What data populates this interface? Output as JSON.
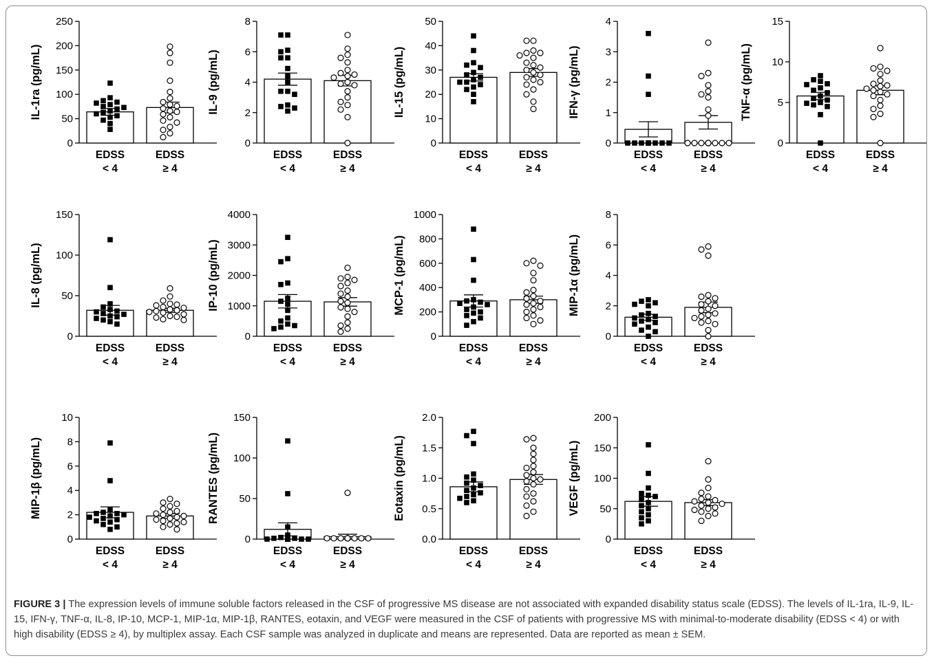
{
  "groups": [
    "EDSS < 4",
    "EDSS ≥ 4"
  ],
  "caption": {
    "label": "FIGURE 3 |",
    "text": " The expression levels of immune soluble factors released in the CSF of progressive MS disease are not associated with expanded disability status scale (EDSS). The levels of IL-1ra, IL-9, IL-15, IFN-γ, TNF-α, IL-8, IP-10, MCP-1, MIP-1α, MIP-1β, RANTES, eotaxin, and VEGF were measured in the CSF of patients with progressive MS with minimal-to-moderate disability (EDSS < 4) or with high disability (EDSS ≥ 4), by multiplex assay. Each CSF sample was analyzed in duplicate and means are represented. Data are reported as mean ± SEM."
  },
  "chart_data": [
    {
      "type": "scatter",
      "ylabel": "IL-1ra (pg/mL)",
      "ylim": [
        0,
        250
      ],
      "yticks": [
        0,
        50,
        100,
        150,
        200,
        250
      ],
      "categories": [
        "EDSS\n< 4",
        "EDSS\n≥ 4"
      ],
      "series": [
        {
          "name": "EDSS < 4",
          "marker": "square",
          "mean": 64,
          "sem": 7,
          "values": [
            123,
            93,
            87,
            84,
            82,
            79,
            75,
            73,
            70,
            66,
            63,
            60,
            56,
            53,
            47,
            40,
            28
          ]
        },
        {
          "name": "EDSS ≥ 4",
          "marker": "circle",
          "mean": 73,
          "sem": 11,
          "values": [
            198,
            185,
            165,
            128,
            105,
            92,
            84,
            79,
            76,
            71,
            66,
            64,
            59,
            53,
            46,
            42,
            33,
            27,
            20,
            12
          ]
        }
      ]
    },
    {
      "type": "scatter",
      "ylabel": "IL-9 (pg/mL)",
      "ylim": [
        0,
        8
      ],
      "yticks": [
        0,
        2,
        4,
        6,
        8
      ],
      "categories": [
        "EDSS\n< 4",
        "EDSS\n≥ 4"
      ],
      "series": [
        {
          "name": "EDSS < 4",
          "marker": "square",
          "mean": 4.2,
          "sem": 0.4,
          "values": [
            7.1,
            7.1,
            6.1,
            6.0,
            5.6,
            5.6,
            4.9,
            4.4,
            4.0,
            3.4,
            3.4,
            3.2,
            2.5,
            2.4,
            2.3,
            2.1
          ]
        },
        {
          "name": "EDSS ≥ 4",
          "marker": "circle",
          "mean": 4.1,
          "sem": 0.35,
          "values": [
            7.1,
            6.2,
            5.8,
            5.6,
            5.3,
            4.8,
            4.6,
            4.5,
            4.4,
            4.3,
            4.0,
            3.9,
            3.8,
            3.4,
            3.0,
            2.7,
            2.5,
            2.2,
            1.7,
            0.0
          ]
        }
      ]
    },
    {
      "type": "scatter",
      "ylabel": "IL-15 (pg/mL)",
      "ylim": [
        0,
        50
      ],
      "yticks": [
        0,
        10,
        20,
        30,
        40,
        50
      ],
      "categories": [
        "EDSS\n< 4",
        "EDSS\n≥ 4"
      ],
      "series": [
        {
          "name": "EDSS < 4",
          "marker": "square",
          "mean": 27,
          "sem": 1.5,
          "values": [
            44,
            38,
            33,
            32,
            31,
            29,
            28,
            27,
            26,
            25,
            25,
            24,
            23,
            22,
            20,
            17
          ]
        },
        {
          "name": "EDSS ≥ 4",
          "marker": "circle",
          "mean": 29,
          "sem": 1.6,
          "values": [
            42,
            42,
            38,
            37,
            37,
            36,
            35,
            33,
            32,
            31,
            30,
            29,
            28,
            27,
            26,
            25,
            24,
            22,
            20,
            17,
            14
          ]
        }
      ]
    },
    {
      "type": "scatter",
      "ylabel": "IFN-γ (pg/mL)",
      "ylim": [
        0,
        4
      ],
      "yticks": [
        0,
        1,
        2,
        3,
        4
      ],
      "categories": [
        "EDSS\n< 4",
        "EDSS\n≥ 4"
      ],
      "series": [
        {
          "name": "EDSS < 4",
          "marker": "square",
          "mean": 0.45,
          "sem": 0.25,
          "values": [
            3.6,
            2.2,
            1.6,
            0,
            0,
            0,
            0,
            0,
            0,
            0,
            0,
            0,
            0,
            0,
            0,
            0,
            0
          ]
        },
        {
          "name": "EDSS ≥ 4",
          "marker": "circle",
          "mean": 0.68,
          "sem": 0.22,
          "values": [
            3.3,
            2.3,
            2.2,
            1.9,
            1.7,
            1.6,
            1.5,
            1.1,
            0.9,
            0,
            0,
            0,
            0,
            0,
            0,
            0,
            0,
            0,
            0,
            0
          ]
        }
      ]
    },
    {
      "type": "scatter",
      "ylabel": "TNF-α (pg/mL)",
      "ylim": [
        0,
        15
      ],
      "yticks": [
        0,
        5,
        10,
        15
      ],
      "categories": [
        "EDSS\n< 4",
        "EDSS\n≥ 4"
      ],
      "series": [
        {
          "name": "EDSS < 4",
          "marker": "square",
          "mean": 5.8,
          "sem": 0.45,
          "values": [
            8.3,
            7.8,
            7.6,
            7.3,
            7.2,
            6.8,
            6.5,
            6.2,
            5.8,
            5.5,
            5.3,
            5.0,
            4.9,
            4.7,
            4.5,
            3.5,
            0
          ]
        },
        {
          "name": "EDSS ≥ 4",
          "marker": "circle",
          "mean": 6.5,
          "sem": 0.55,
          "values": [
            11.7,
            9.4,
            9.2,
            8.9,
            8.5,
            7.7,
            7.3,
            7.1,
            7.0,
            6.7,
            6.5,
            6.3,
            6.0,
            5.8,
            5.3,
            4.6,
            4.2,
            3.6,
            3.2,
            0
          ]
        }
      ]
    },
    {
      "type": "scatter",
      "ylabel": "IL-8 (pg/mL)",
      "ylim": [
        0,
        150
      ],
      "yticks": [
        0,
        50,
        100,
        150
      ],
      "categories": [
        "EDSS\n< 4",
        "EDSS\n≥ 4"
      ],
      "series": [
        {
          "name": "EDSS < 4",
          "marker": "square",
          "mean": 32,
          "sem": 6,
          "values": [
            119,
            60,
            40,
            36,
            33,
            31,
            30,
            28,
            27,
            25,
            24,
            22,
            20,
            18,
            15
          ]
        },
        {
          "name": "EDSS ≥ 4",
          "marker": "circle",
          "mean": 32,
          "sem": 2.5,
          "values": [
            59,
            49,
            44,
            40,
            39,
            38,
            36,
            35,
            33,
            32,
            31,
            30,
            29,
            27,
            25,
            24,
            23,
            21,
            20
          ]
        }
      ]
    },
    {
      "type": "scatter",
      "ylabel": "IP-10 (pg/mL)",
      "ylim": [
        0,
        4000
      ],
      "yticks": [
        0,
        1000,
        2000,
        3000,
        4000
      ],
      "categories": [
        "EDSS\n< 4",
        "EDSS\n≥ 4"
      ],
      "series": [
        {
          "name": "EDSS < 4",
          "marker": "square",
          "mean": 1150,
          "sem": 220,
          "values": [
            3250,
            2550,
            2450,
            1750,
            1700,
            1250,
            1150,
            1050,
            850,
            600,
            500,
            400,
            350,
            300,
            250
          ]
        },
        {
          "name": "EDSS ≥ 4",
          "marker": "circle",
          "mean": 1130,
          "sem": 140,
          "values": [
            2250,
            1950,
            1900,
            1850,
            1750,
            1650,
            1500,
            1400,
            1300,
            1150,
            1100,
            950,
            900,
            800,
            650,
            450,
            350,
            250,
            150
          ]
        }
      ]
    },
    {
      "type": "scatter",
      "ylabel": "MCP-1 (pg/mL)",
      "ylim": [
        0,
        1000
      ],
      "yticks": [
        0,
        200,
        400,
        600,
        800,
        1000
      ],
      "categories": [
        "EDSS\n< 4",
        "EDSS\n≥ 4"
      ],
      "series": [
        {
          "name": "EDSS < 4",
          "marker": "square",
          "mean": 290,
          "sem": 50,
          "values": [
            880,
            630,
            460,
            300,
            290,
            280,
            270,
            260,
            240,
            220,
            200,
            190,
            170,
            150,
            120,
            90
          ]
        },
        {
          "name": "EDSS ≥ 4",
          "marker": "circle",
          "mean": 300,
          "sem": 30,
          "values": [
            620,
            600,
            580,
            520,
            460,
            380,
            360,
            330,
            310,
            290,
            270,
            260,
            240,
            220,
            200,
            170,
            150,
            130,
            100
          ]
        }
      ]
    },
    {
      "type": "scatter",
      "ylabel": "MIP-1α (pg/mL)",
      "ylim": [
        0,
        8
      ],
      "yticks": [
        0,
        2,
        4,
        6,
        8
      ],
      "categories": [
        "EDSS\n< 4",
        "EDSS\n≥ 4"
      ],
      "series": [
        {
          "name": "EDSS < 4",
          "marker": "square",
          "mean": 1.25,
          "sem": 0.2,
          "values": [
            2.4,
            2.3,
            2.2,
            2.1,
            2.0,
            1.5,
            1.4,
            1.3,
            1.2,
            1.1,
            1.0,
            0.9,
            0.8,
            0.6,
            0.4,
            0.3,
            0
          ]
        },
        {
          "name": "EDSS ≥ 4",
          "marker": "circle",
          "mean": 1.9,
          "sem": 0.35,
          "values": [
            5.9,
            5.7,
            5.3,
            2.7,
            2.6,
            2.5,
            2.3,
            2.1,
            2.0,
            1.8,
            1.7,
            1.5,
            1.4,
            1.3,
            1.2,
            1.0,
            0.9,
            0.8,
            0.4,
            0
          ]
        }
      ]
    },
    {
      "type": "scatter",
      "ylabel": "MIP-1β (pg/mL)",
      "ylim": [
        0,
        10
      ],
      "yticks": [
        0,
        2,
        4,
        6,
        8,
        10
      ],
      "categories": [
        "EDSS\n< 4",
        "EDSS\n≥ 4"
      ],
      "series": [
        {
          "name": "EDSS < 4",
          "marker": "square",
          "mean": 2.2,
          "sem": 0.45,
          "values": [
            7.9,
            4.8,
            2.4,
            2.2,
            2.1,
            2.1,
            2.0,
            1.9,
            1.8,
            1.7,
            1.6,
            1.5,
            1.4,
            1.2,
            1.0,
            0.8
          ]
        },
        {
          "name": "EDSS ≥ 4",
          "marker": "circle",
          "mean": 1.9,
          "sem": 0.2,
          "values": [
            3.3,
            3.0,
            2.9,
            2.7,
            2.5,
            2.3,
            2.2,
            2.1,
            2.0,
            1.9,
            1.8,
            1.7,
            1.6,
            1.5,
            1.4,
            1.3,
            1.2,
            1.0,
            0.8
          ]
        }
      ]
    },
    {
      "type": "scatter",
      "ylabel": "RANTES (pg/mL)",
      "ylim": [
        0,
        150
      ],
      "yticks": [
        0,
        50,
        100,
        150
      ],
      "categories": [
        "EDSS\n< 4",
        "EDSS\n≥ 4"
      ],
      "series": [
        {
          "name": "EDSS < 4",
          "marker": "square",
          "mean": 12,
          "sem": 8,
          "values": [
            121,
            56,
            15,
            5,
            2,
            1,
            1,
            0,
            0,
            0,
            0,
            0,
            0,
            0,
            0
          ]
        },
        {
          "name": "EDSS ≥ 4",
          "marker": "circle",
          "mean": 3,
          "sem": 3,
          "values": [
            57,
            1,
            1,
            1,
            1,
            1,
            1,
            1,
            1,
            1,
            1,
            1,
            1,
            1,
            1,
            1
          ]
        }
      ]
    },
    {
      "type": "scatter",
      "ylabel": "Eotaxin (pg/mL)",
      "ylim": [
        0,
        2
      ],
      "yticks": [
        0,
        0.5,
        1.0,
        1.5,
        2.0
      ],
      "categories": [
        "EDSS\n< 4",
        "EDSS\n≥ 4"
      ],
      "series": [
        {
          "name": "EDSS < 4",
          "marker": "square",
          "mean": 0.86,
          "sem": 0.08,
          "values": [
            1.77,
            1.7,
            1.57,
            1.07,
            1.02,
            0.97,
            0.92,
            0.88,
            0.84,
            0.8,
            0.76,
            0.73,
            0.7,
            0.67,
            0.63,
            0.6
          ]
        },
        {
          "name": "EDSS ≥ 4",
          "marker": "circle",
          "mean": 0.98,
          "sem": 0.08,
          "values": [
            1.66,
            1.64,
            1.5,
            1.4,
            1.3,
            1.2,
            1.17,
            1.1,
            1.05,
            1.0,
            0.98,
            0.95,
            0.9,
            0.82,
            0.75,
            0.7,
            0.62,
            0.55,
            0.45,
            0.38
          ]
        }
      ]
    },
    {
      "type": "scatter",
      "ylabel": "VEGF (pg/mL)",
      "ylim": [
        0,
        200
      ],
      "yticks": [
        0,
        50,
        100,
        150,
        200
      ],
      "categories": [
        "EDSS\n< 4",
        "EDSS\n≥ 4"
      ],
      "series": [
        {
          "name": "EDSS < 4",
          "marker": "square",
          "mean": 62,
          "sem": 8,
          "values": [
            155,
            108,
            84,
            75,
            72,
            70,
            65,
            60,
            55,
            50,
            45,
            40,
            35,
            30,
            25
          ]
        },
        {
          "name": "EDSS ≥ 4",
          "marker": "circle",
          "mean": 60,
          "sem": 5,
          "values": [
            128,
            98,
            84,
            76,
            70,
            66,
            64,
            62,
            60,
            58,
            55,
            52,
            50,
            48,
            45,
            42,
            38,
            30
          ]
        }
      ]
    }
  ]
}
